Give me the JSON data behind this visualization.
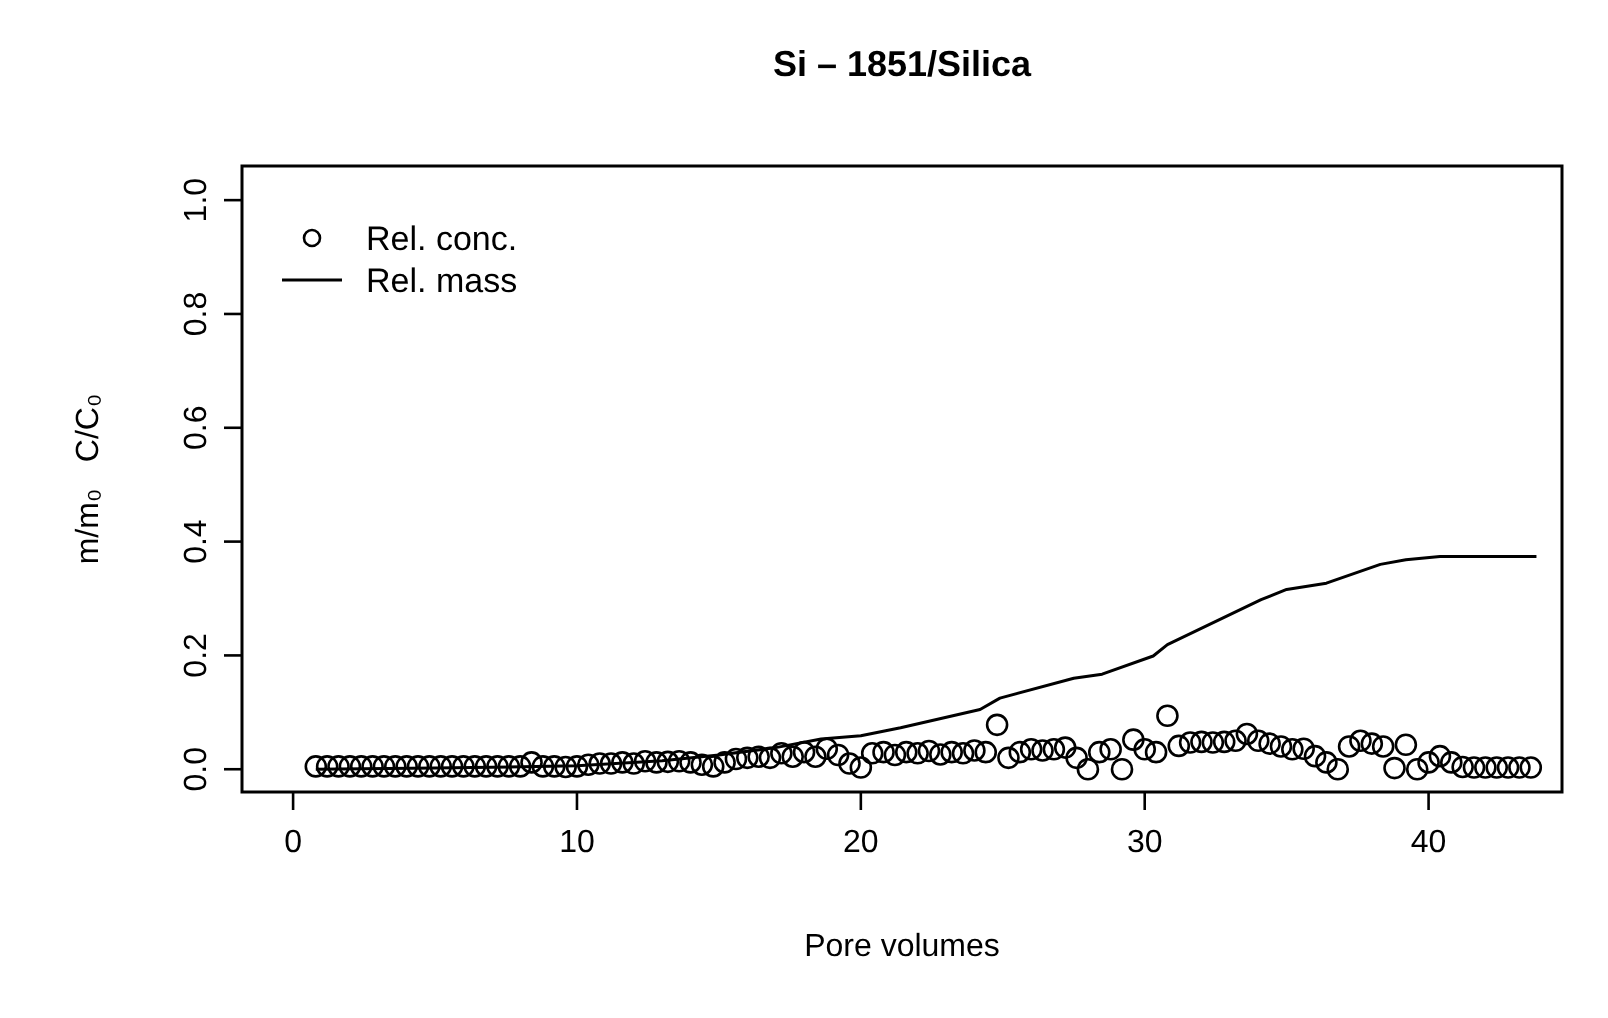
{
  "chart_data": {
    "type": "scatter",
    "title": "Si – 1851/Silica",
    "xlabel": "Pore volumes",
    "ylabel": "m/m₀   C/C₀",
    "xlim": [
      -1.8,
      44.7
    ],
    "ylim": [
      -0.04,
      1.06
    ],
    "xticks": [
      0,
      10,
      20,
      30,
      40
    ],
    "yticks": [
      {
        "value": 0,
        "label": "0.0"
      },
      {
        "value": 0.2,
        "label": "0.2"
      },
      {
        "value": 0.4,
        "label": "0.4"
      },
      {
        "value": 0.6,
        "label": "0.6"
      },
      {
        "value": 0.8,
        "label": "0.8"
      },
      {
        "value": 1,
        "label": "1.0"
      }
    ],
    "grid": false,
    "legend": "top left",
    "series": [
      {
        "name": "Rel. conc.",
        "marker": "circle",
        "color": "#000000",
        "x": [
          0.8,
          1.2,
          1.6,
          2.0,
          2.4,
          2.8,
          3.2,
          3.6,
          4.0,
          4.4,
          4.8,
          5.2,
          5.6,
          6.0,
          6.4,
          6.8,
          7.2,
          7.6,
          8.0,
          8.4,
          8.8,
          9.2,
          9.6,
          10.0,
          10.4,
          10.8,
          11.2,
          11.6,
          12.0,
          12.4,
          12.8,
          13.2,
          13.6,
          14.0,
          14.4,
          14.8,
          15.2,
          15.6,
          16.0,
          16.4,
          16.8,
          17.2,
          17.6,
          18.0,
          18.4,
          18.8,
          19.2,
          19.6,
          20.0,
          20.4,
          20.8,
          21.2,
          21.6,
          22.0,
          22.4,
          22.8,
          23.2,
          23.6,
          24.0,
          24.4,
          24.8,
          25.2,
          25.6,
          26.0,
          26.4,
          26.8,
          27.2,
          27.6,
          28.0,
          28.4,
          28.8,
          29.2,
          29.6,
          30.0,
          30.4,
          30.8,
          31.2,
          31.6,
          32.0,
          32.4,
          32.8,
          33.2,
          33.6,
          34.0,
          34.4,
          34.8,
          35.2,
          35.6,
          36.0,
          36.4,
          36.8,
          37.2,
          37.6,
          38.0,
          38.4,
          38.8,
          39.2,
          39.6,
          40.0,
          40.4,
          40.8,
          41.2,
          41.6,
          42.0,
          42.4,
          42.8,
          43.2,
          43.6
        ],
        "values": [
          0.005,
          0.005,
          0.005,
          0.005,
          0.005,
          0.005,
          0.005,
          0.005,
          0.005,
          0.005,
          0.005,
          0.005,
          0.005,
          0.005,
          0.005,
          0.005,
          0.005,
          0.005,
          0.005,
          0.012,
          0.005,
          0.005,
          0.004,
          0.005,
          0.008,
          0.01,
          0.01,
          0.012,
          0.01,
          0.014,
          0.012,
          0.013,
          0.014,
          0.012,
          0.008,
          0.005,
          0.012,
          0.018,
          0.02,
          0.022,
          0.02,
          0.028,
          0.022,
          0.03,
          0.022,
          0.036,
          0.025,
          0.01,
          0.003,
          0.028,
          0.03,
          0.025,
          0.03,
          0.028,
          0.032,
          0.026,
          0.03,
          0.028,
          0.033,
          0.03,
          0.078,
          0.02,
          0.03,
          0.035,
          0.033,
          0.035,
          0.038,
          0.02,
          0.0,
          0.03,
          0.035,
          0.0,
          0.052,
          0.035,
          0.03,
          0.094,
          0.041,
          0.047,
          0.048,
          0.047,
          0.048,
          0.05,
          0.062,
          0.05,
          0.045,
          0.04,
          0.035,
          0.036,
          0.023,
          0.012,
          0.0,
          0.04,
          0.05,
          0.045,
          0.04,
          0.002,
          0.043,
          0.0,
          0.012,
          0.023,
          0.012,
          0.004,
          0.003,
          0.003,
          0.003,
          0.003,
          0.003,
          0.003
        ]
      },
      {
        "name": "Rel. mass",
        "type": "line",
        "marker": "none",
        "line_style": "solid",
        "color": "#000000",
        "x": [
          0.8,
          5,
          10,
          13,
          15,
          17,
          18.6,
          20,
          21.4,
          24.2,
          24.9,
          27.5,
          28.5,
          30.3,
          30.8,
          34.1,
          35,
          36.4,
          38.3,
          39.2,
          40.4,
          43.8
        ],
        "values": [
          0,
          0.002,
          0.006,
          0.015,
          0.025,
          0.038,
          0.053,
          0.059,
          0.073,
          0.105,
          0.125,
          0.16,
          0.167,
          0.199,
          0.219,
          0.298,
          0.316,
          0.327,
          0.36,
          0.368,
          0.374,
          0.374
        ]
      }
    ]
  }
}
